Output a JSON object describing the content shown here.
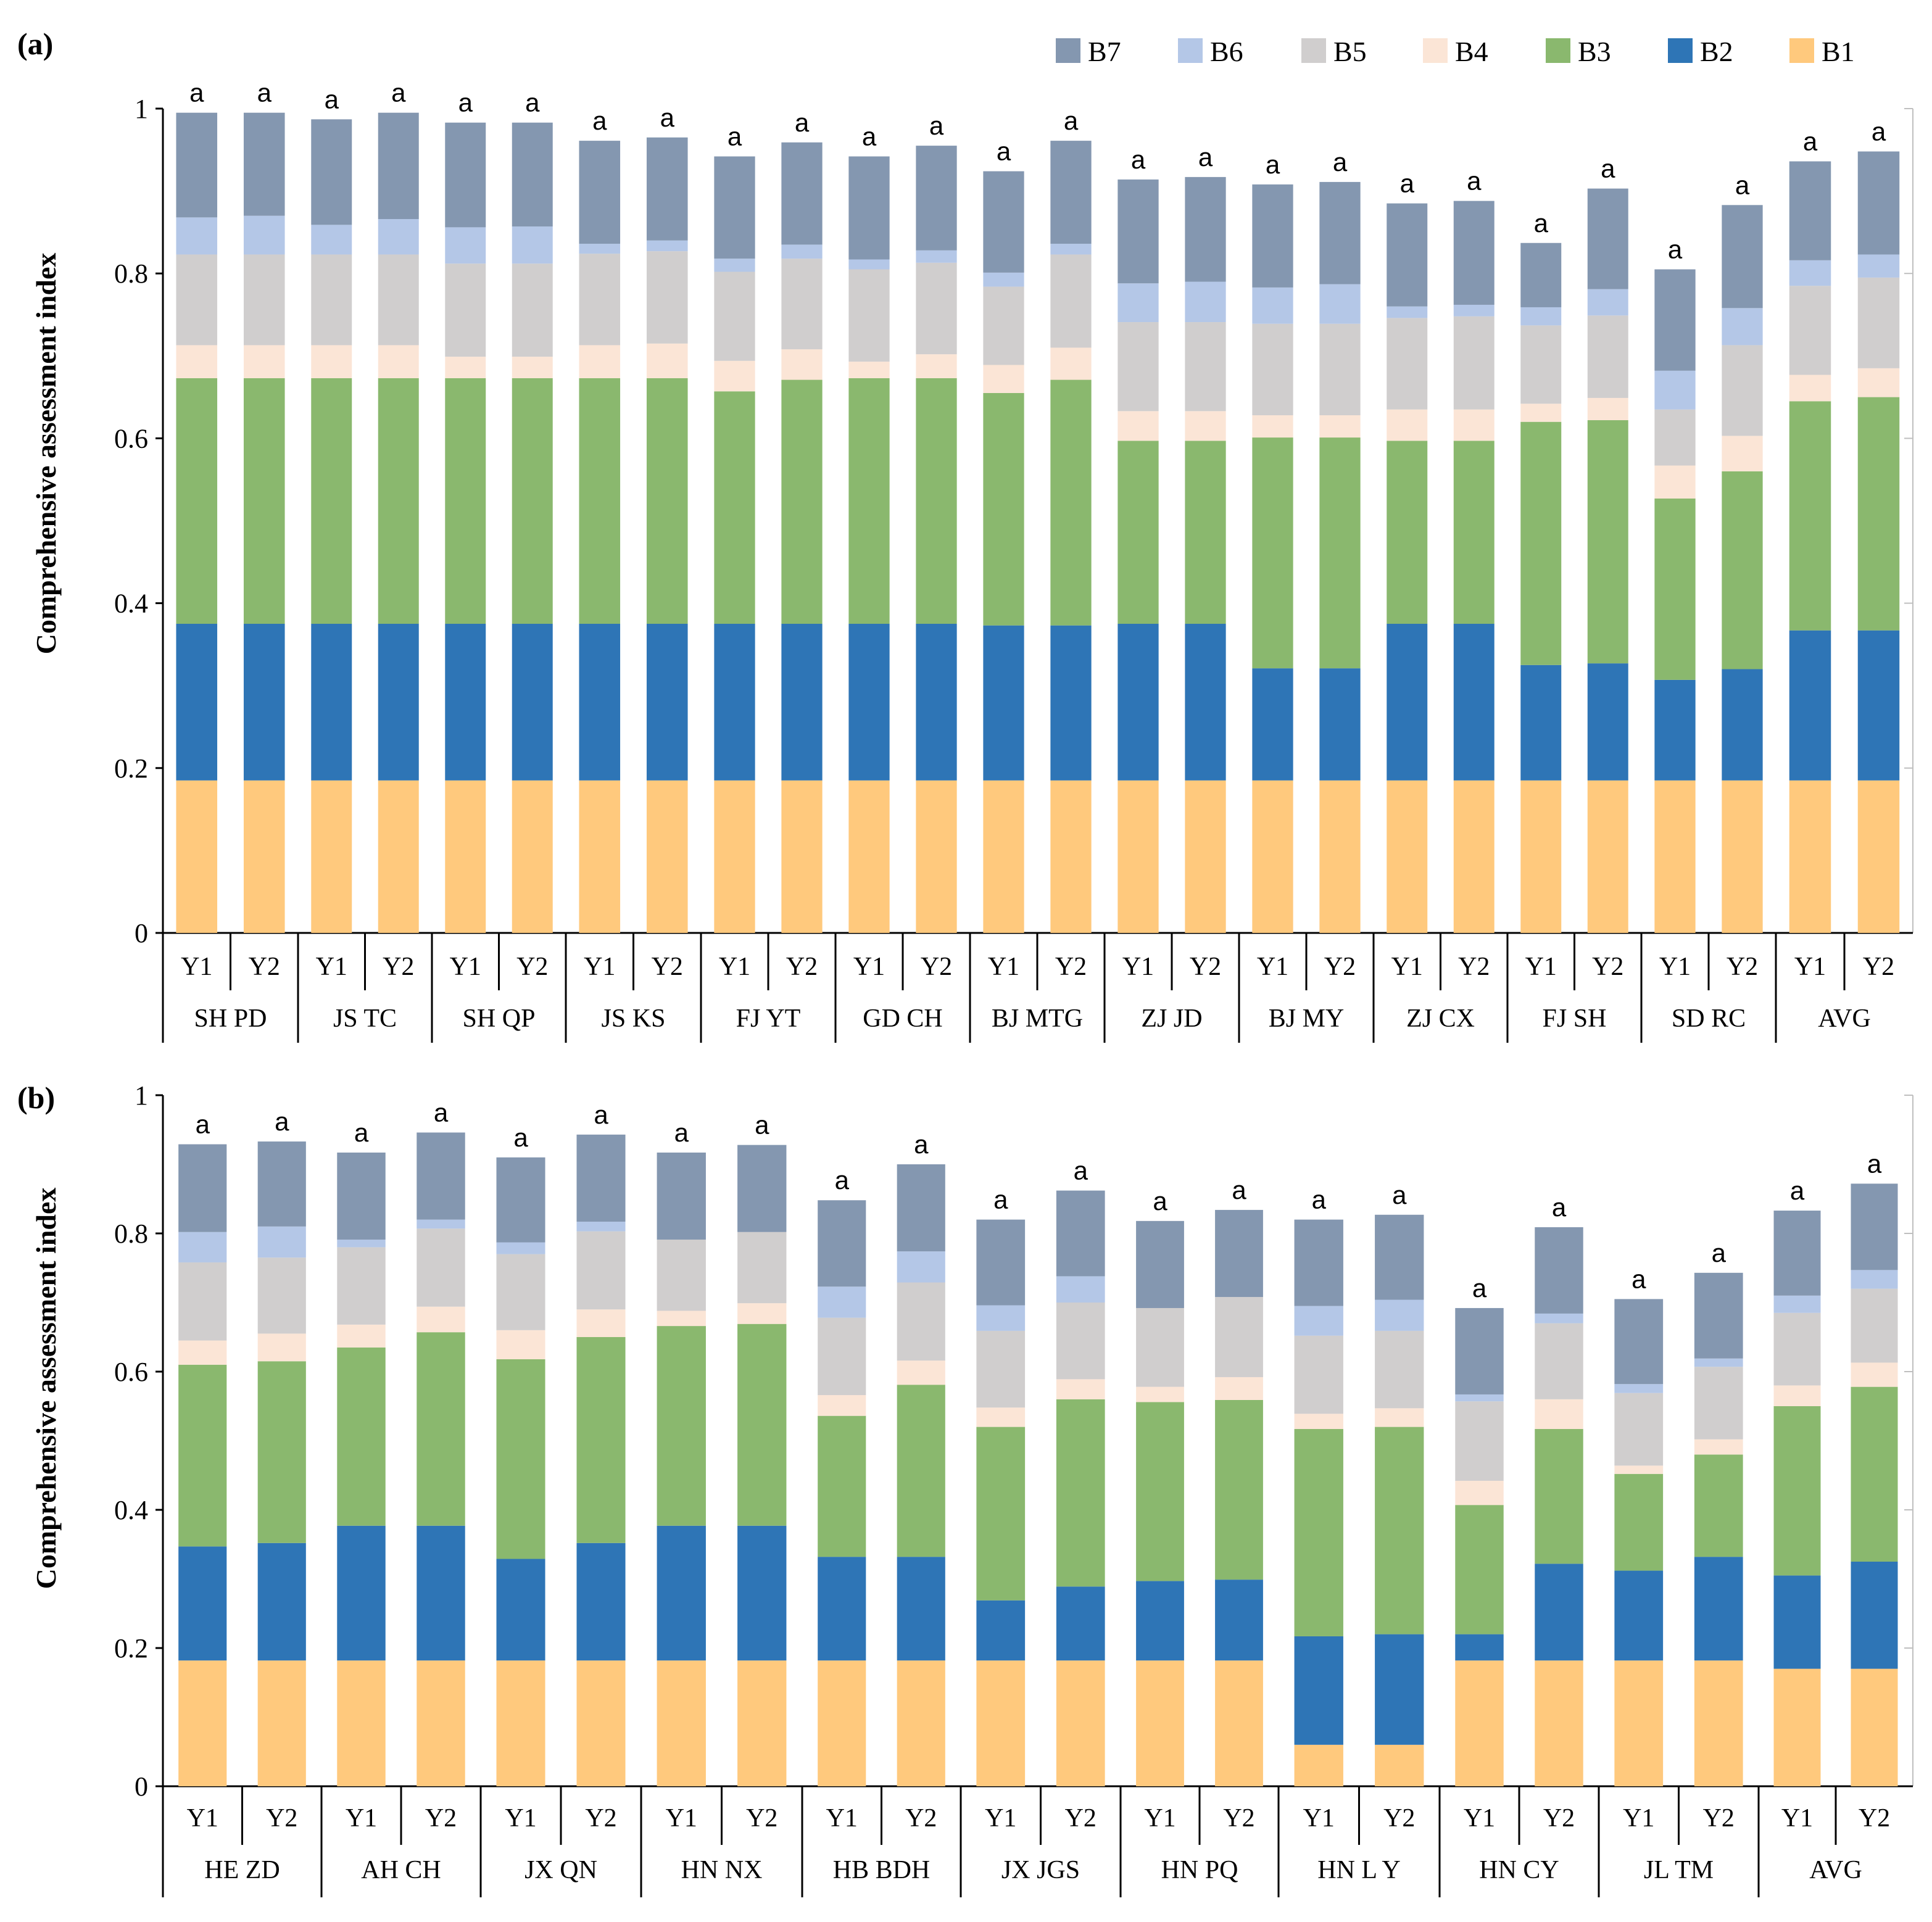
{
  "legend": [
    {
      "label": "B7",
      "color": "#8497B0"
    },
    {
      "label": "B6",
      "color": "#B4C7E7"
    },
    {
      "label": "B5",
      "color": "#D0CECE"
    },
    {
      "label": "B4",
      "color": "#FBE5D6"
    },
    {
      "label": "B3",
      "color": "#8AB86E"
    },
    {
      "label": "B2",
      "color": "#2E75B6"
    },
    {
      "label": "B1",
      "color": "#FFC97D"
    }
  ],
  "chart_data": [
    {
      "type": "bar",
      "stacked": true,
      "panel_label": "(a)",
      "ylabel": "Comprehensive assessment index",
      "ylim": [
        0,
        1
      ],
      "yticks": [
        "0",
        "0.2",
        "0.4",
        "0.6",
        "0.8",
        "1"
      ],
      "ytick_values": [
        0,
        0.2,
        0.4,
        0.6,
        0.8,
        1.0
      ],
      "legend_position": "top-right",
      "groups": [
        "SH PD",
        "JS TC",
        "SH QP",
        "JS KS",
        "FJ YT",
        "GD CH",
        "BJ MTG",
        "ZJ JD",
        "BJ MY",
        "ZJ CX",
        "FJ SH",
        "SD RC",
        "AVG"
      ],
      "subcategories": [
        "Y1",
        "Y2"
      ],
      "significance_label": "a",
      "series_order": [
        "B1",
        "B2",
        "B3",
        "B4",
        "B5",
        "B6",
        "B7"
      ],
      "bars": [
        {
          "group": "SH PD",
          "sub": "Y1",
          "values": [
            0.185,
            0.19,
            0.298,
            0.04,
            0.11,
            0.045,
            0.127
          ]
        },
        {
          "group": "SH PD",
          "sub": "Y2",
          "values": [
            0.185,
            0.19,
            0.298,
            0.04,
            0.11,
            0.047,
            0.125
          ]
        },
        {
          "group": "JS TC",
          "sub": "Y1",
          "values": [
            0.185,
            0.19,
            0.298,
            0.04,
            0.11,
            0.036,
            0.128
          ]
        },
        {
          "group": "JS TC",
          "sub": "Y2",
          "values": [
            0.185,
            0.19,
            0.298,
            0.04,
            0.11,
            0.043,
            0.129
          ]
        },
        {
          "group": "SH QP",
          "sub": "Y1",
          "values": [
            0.185,
            0.19,
            0.298,
            0.026,
            0.113,
            0.044,
            0.127
          ]
        },
        {
          "group": "SH QP",
          "sub": "Y2",
          "values": [
            0.185,
            0.19,
            0.298,
            0.026,
            0.113,
            0.045,
            0.126
          ]
        },
        {
          "group": "JS KS",
          "sub": "Y1",
          "values": [
            0.185,
            0.19,
            0.298,
            0.04,
            0.111,
            0.012,
            0.125
          ]
        },
        {
          "group": "JS KS",
          "sub": "Y2",
          "values": [
            0.185,
            0.19,
            0.298,
            0.042,
            0.112,
            0.013,
            0.125
          ]
        },
        {
          "group": "FJ YT",
          "sub": "Y1",
          "values": [
            0.185,
            0.19,
            0.282,
            0.037,
            0.108,
            0.016,
            0.124
          ]
        },
        {
          "group": "FJ YT",
          "sub": "Y2",
          "values": [
            0.185,
            0.19,
            0.296,
            0.037,
            0.11,
            0.017,
            0.124
          ]
        },
        {
          "group": "GD CH",
          "sub": "Y1",
          "values": [
            0.185,
            0.19,
            0.298,
            0.02,
            0.112,
            0.012,
            0.125
          ]
        },
        {
          "group": "GD CH",
          "sub": "Y2",
          "values": [
            0.185,
            0.19,
            0.298,
            0.029,
            0.111,
            0.015,
            0.127
          ]
        },
        {
          "group": "BJ MTG",
          "sub": "Y1",
          "values": [
            0.185,
            0.188,
            0.282,
            0.034,
            0.095,
            0.017,
            0.123
          ]
        },
        {
          "group": "BJ MTG",
          "sub": "Y2",
          "values": [
            0.185,
            0.188,
            0.298,
            0.039,
            0.113,
            0.013,
            0.125
          ]
        },
        {
          "group": "ZJ JD",
          "sub": "Y1",
          "values": [
            0.185,
            0.19,
            0.222,
            0.036,
            0.108,
            0.047,
            0.126
          ]
        },
        {
          "group": "ZJ JD",
          "sub": "Y2",
          "values": [
            0.185,
            0.19,
            0.222,
            0.036,
            0.108,
            0.049,
            0.127
          ]
        },
        {
          "group": "BJ MY",
          "sub": "Y1",
          "values": [
            0.185,
            0.136,
            0.28,
            0.027,
            0.111,
            0.044,
            0.125
          ]
        },
        {
          "group": "BJ MY",
          "sub": "Y2",
          "values": [
            0.185,
            0.136,
            0.28,
            0.027,
            0.111,
            0.048,
            0.124
          ]
        },
        {
          "group": "ZJ CX",
          "sub": "Y1",
          "values": [
            0.185,
            0.19,
            0.222,
            0.038,
            0.111,
            0.014,
            0.125
          ]
        },
        {
          "group": "ZJ CX",
          "sub": "Y2",
          "values": [
            0.185,
            0.19,
            0.222,
            0.038,
            0.113,
            0.014,
            0.126
          ]
        },
        {
          "group": "FJ SH",
          "sub": "Y1",
          "values": [
            0.185,
            0.14,
            0.295,
            0.022,
            0.095,
            0.022,
            0.078
          ]
        },
        {
          "group": "FJ SH",
          "sub": "Y2",
          "values": [
            0.185,
            0.142,
            0.295,
            0.027,
            0.1,
            0.032,
            0.122
          ]
        },
        {
          "group": "SD RC",
          "sub": "Y1",
          "values": [
            0.185,
            0.122,
            0.22,
            0.04,
            0.068,
            0.047,
            0.123
          ]
        },
        {
          "group": "SD RC",
          "sub": "Y2",
          "values": [
            0.185,
            0.135,
            0.24,
            0.043,
            0.11,
            0.045,
            0.125
          ]
        },
        {
          "group": "AVG",
          "sub": "Y1",
          "values": [
            0.185,
            0.182,
            0.278,
            0.032,
            0.108,
            0.031,
            0.12
          ]
        },
        {
          "group": "AVG",
          "sub": "Y2",
          "values": [
            0.185,
            0.182,
            0.283,
            0.035,
            0.11,
            0.028,
            0.125
          ]
        }
      ]
    },
    {
      "type": "bar",
      "stacked": true,
      "panel_label": "(b)",
      "ylabel": "Comprehensive assessment index",
      "ylim": [
        0,
        1
      ],
      "yticks": [
        "0",
        "0.2",
        "0.4",
        "0.6",
        "0.8",
        "1"
      ],
      "ytick_values": [
        0,
        0.2,
        0.4,
        0.6,
        0.8,
        1.0
      ],
      "groups": [
        "HE ZD",
        "AH CH",
        "JX QN",
        "HN NX",
        "HB BDH",
        "JX JGS",
        "HN PQ",
        "HN L Y",
        "HN CY",
        "JL TM",
        "AVG"
      ],
      "subcategories": [
        "Y1",
        "Y2"
      ],
      "significance_label": "a",
      "series_order": [
        "B1",
        "B2",
        "B3",
        "B4",
        "B5",
        "B6",
        "B7"
      ],
      "bars": [
        {
          "group": "HE ZD",
          "sub": "Y1",
          "values": [
            0.182,
            0.165,
            0.263,
            0.035,
            0.113,
            0.044,
            0.127
          ]
        },
        {
          "group": "HE ZD",
          "sub": "Y2",
          "values": [
            0.182,
            0.17,
            0.263,
            0.04,
            0.11,
            0.045,
            0.123
          ]
        },
        {
          "group": "AH CH",
          "sub": "Y1",
          "values": [
            0.182,
            0.195,
            0.258,
            0.033,
            0.112,
            0.011,
            0.126
          ]
        },
        {
          "group": "AH CH",
          "sub": "Y2",
          "values": [
            0.182,
            0.195,
            0.28,
            0.037,
            0.113,
            0.013,
            0.126
          ]
        },
        {
          "group": "JX QN",
          "sub": "Y1",
          "values": [
            0.182,
            0.147,
            0.289,
            0.042,
            0.11,
            0.017,
            0.123
          ]
        },
        {
          "group": "JX QN",
          "sub": "Y2",
          "values": [
            0.182,
            0.17,
            0.298,
            0.04,
            0.113,
            0.014,
            0.126
          ]
        },
        {
          "group": "HN NX",
          "sub": "Y1",
          "values": [
            0.182,
            0.195,
            0.289,
            0.022,
            0.103,
            0,
            0.126
          ]
        },
        {
          "group": "HN NX",
          "sub": "Y2",
          "values": [
            0.182,
            0.195,
            0.292,
            0.03,
            0.103,
            0,
            0.126
          ]
        },
        {
          "group": "HB BDH",
          "sub": "Y1",
          "values": [
            0.182,
            0.15,
            0.204,
            0.03,
            0.112,
            0.045,
            0.125
          ]
        },
        {
          "group": "HB BDH",
          "sub": "Y2",
          "values": [
            0.182,
            0.15,
            0.249,
            0.035,
            0.113,
            0.045,
            0.126
          ]
        },
        {
          "group": "JX JGS",
          "sub": "Y1",
          "values": [
            0.182,
            0.087,
            0.251,
            0.028,
            0.111,
            0.037,
            0.124
          ]
        },
        {
          "group": "JX JGS",
          "sub": "Y2",
          "values": [
            0.182,
            0.107,
            0.271,
            0.029,
            0.111,
            0.038,
            0.124
          ]
        },
        {
          "group": "HN PQ",
          "sub": "Y1",
          "values": [
            0.182,
            0.115,
            0.259,
            0.022,
            0.114,
            0,
            0.126
          ]
        },
        {
          "group": "HN PQ",
          "sub": "Y2",
          "values": [
            0.182,
            0.117,
            0.26,
            0.033,
            0.116,
            0,
            0.126
          ]
        },
        {
          "group": "HN L Y",
          "sub": "Y1",
          "values": [
            0.06,
            0.157,
            0.3,
            0.022,
            0.113,
            0.043,
            0.125
          ]
        },
        {
          "group": "HN L Y",
          "sub": "Y2",
          "values": [
            0.06,
            0.16,
            0.3,
            0.027,
            0.112,
            0.045,
            0.123
          ]
        },
        {
          "group": "HN CY",
          "sub": "Y1",
          "values": [
            0.182,
            0.038,
            0.187,
            0.035,
            0.115,
            0.01,
            0.125
          ]
        },
        {
          "group": "HN CY",
          "sub": "Y2",
          "values": [
            0.182,
            0.14,
            0.195,
            0.043,
            0.11,
            0.014,
            0.125
          ]
        },
        {
          "group": "JL TM",
          "sub": "Y1",
          "values": [
            0.182,
            0.13,
            0.14,
            0.012,
            0.105,
            0.013,
            0.123
          ]
        },
        {
          "group": "JL TM",
          "sub": "Y2",
          "values": [
            0.182,
            0.15,
            0.148,
            0.022,
            0.105,
            0.012,
            0.124
          ]
        },
        {
          "group": "AVG",
          "sub": "Y1",
          "values": [
            0.17,
            0.135,
            0.245,
            0.03,
            0.105,
            0.025,
            0.123
          ]
        },
        {
          "group": "AVG",
          "sub": "Y2",
          "values": [
            0.17,
            0.155,
            0.253,
            0.035,
            0.107,
            0.027,
            0.125
          ]
        }
      ]
    }
  ]
}
